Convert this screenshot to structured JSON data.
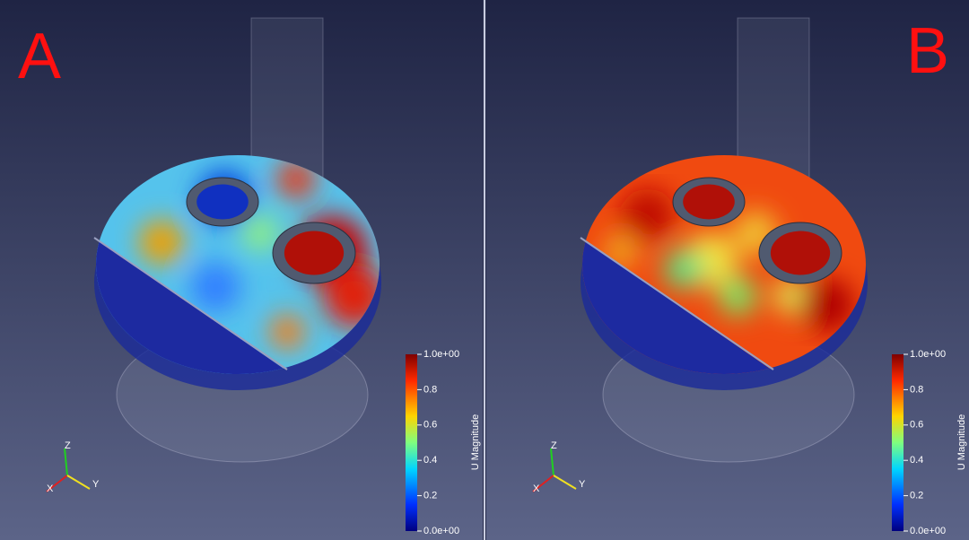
{
  "panels": [
    {
      "label": "A",
      "colorbar": {
        "title": "U Magnitude",
        "range": [
          0,
          1
        ],
        "ticks": [
          {
            "value": 1,
            "label": "1.0e+00"
          },
          0.8,
          0.6,
          0.4,
          0.2,
          {
            "value": 0,
            "label": "0.0e+00"
          }
        ]
      },
      "axes": {
        "x": "X",
        "y": "Y",
        "z": "Z"
      }
    },
    {
      "label": "B",
      "colorbar": {
        "title": "U Magnitude",
        "range": [
          0,
          1
        ],
        "ticks": [
          {
            "value": 1,
            "label": "1.0e+00"
          },
          0.8,
          0.6,
          0.4,
          0.2,
          {
            "value": 0,
            "label": "0.0e+00"
          }
        ]
      },
      "axes": {
        "x": "X",
        "y": "Y",
        "z": "Z"
      }
    }
  ]
}
